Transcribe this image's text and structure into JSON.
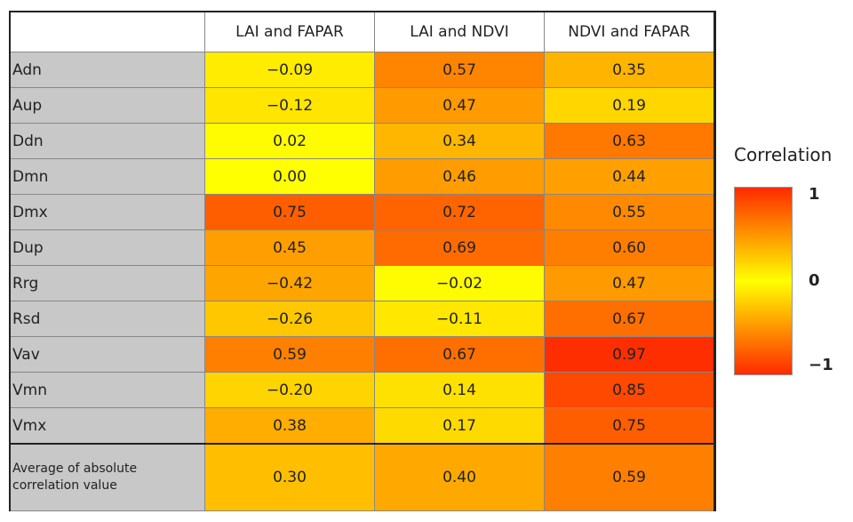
{
  "table": {
    "header": [
      "LAI and FAPAR",
      "LAI and NDVI",
      "NDVI and FAPAR"
    ],
    "rows": [
      [
        "Adn",
        "−0.09",
        "0.57",
        "0.35"
      ],
      [
        "Aup",
        "−0.12",
        "0.47",
        "0.19"
      ],
      [
        "Ddn",
        "0.02",
        "0.34",
        "0.63"
      ],
      [
        "Dmn",
        "0.00",
        "0.46",
        "0.44"
      ],
      [
        "Dmx",
        "0.75",
        "0.72",
        "0.55"
      ],
      [
        "Dup",
        "0.45",
        "0.69",
        "0.60"
      ],
      [
        "Rrg",
        "−0.42",
        "−0.02",
        "0.47"
      ],
      [
        "Rsd",
        "−0.26",
        "−0.11",
        "0.67"
      ],
      [
        "Vav",
        "0.59",
        "0.67",
        "0.97"
      ],
      [
        "Vmn",
        "−0.20",
        "0.14",
        "0.85"
      ],
      [
        "Vmx",
        "0.38",
        "0.17",
        "0.75"
      ]
    ],
    "average": [
      "Average of absolute correlation value",
      "0.30",
      "0.40",
      "0.59"
    ]
  },
  "legend": {
    "title": "Correlation",
    "labels": [
      "1",
      "0",
      "−1"
    ]
  }
}
